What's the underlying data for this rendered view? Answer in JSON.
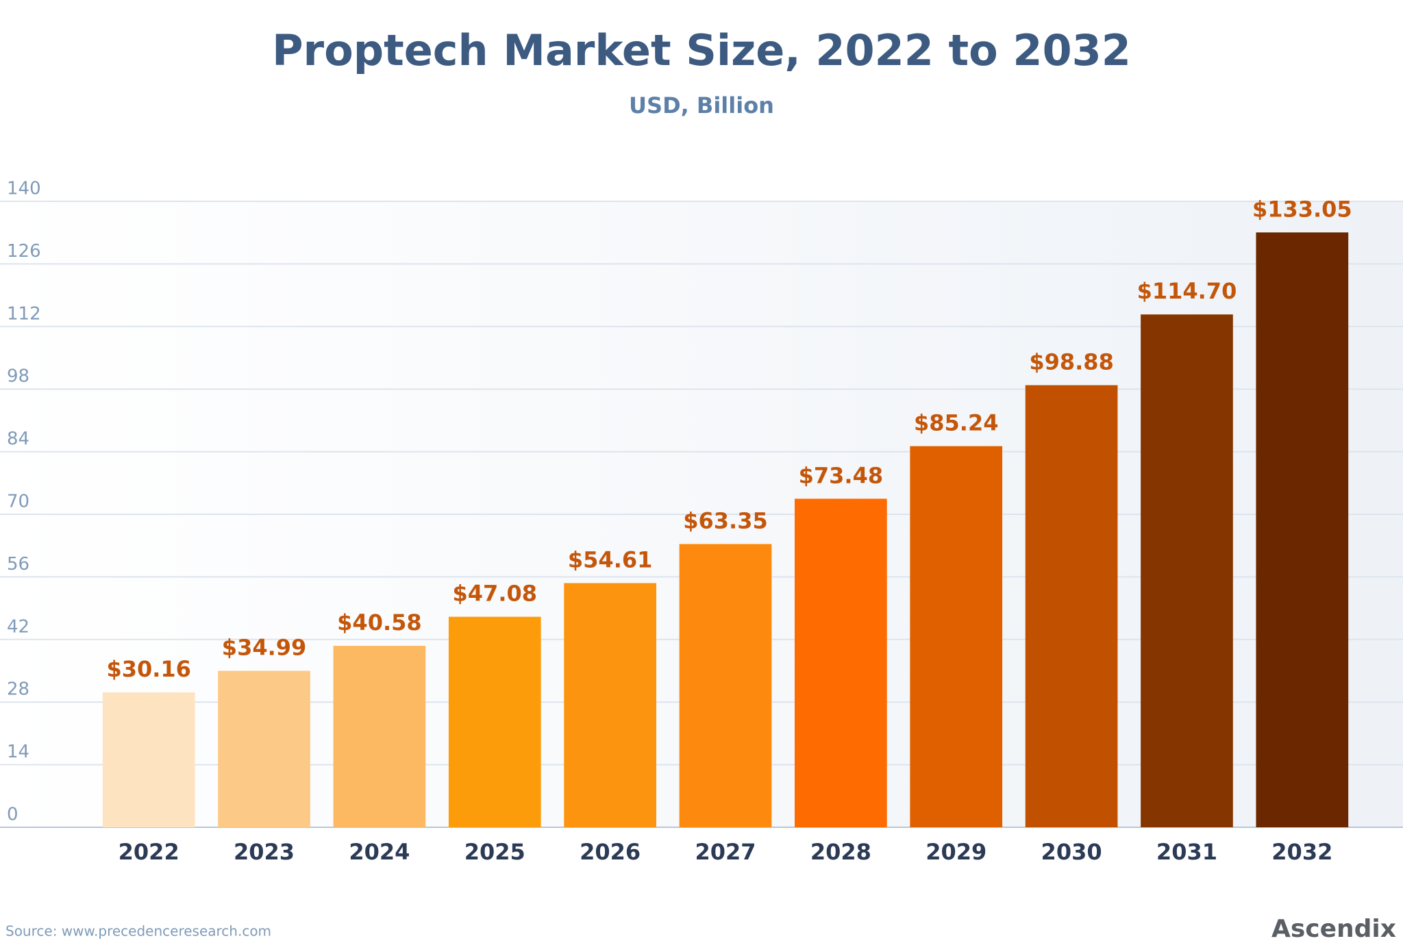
{
  "chart_data": {
    "type": "bar",
    "title": "Proptech Market Size, 2022 to 2032",
    "subtitle": "USD, Billion",
    "categories": [
      "2022",
      "2023",
      "2024",
      "2025",
      "2026",
      "2027",
      "2028",
      "2029",
      "2030",
      "2031",
      "2032"
    ],
    "values": [
      30.16,
      34.99,
      40.58,
      47.08,
      54.61,
      63.35,
      73.48,
      85.24,
      98.88,
      114.7,
      133.05
    ],
    "value_labels": [
      "$30.16",
      "$34.99",
      "$40.58",
      "$47.08",
      "$54.61",
      "$63.35",
      "$73.48",
      "$85.24",
      "$98.88",
      "$114.70",
      "$133.05"
    ],
    "colors": [
      "#fde3c0",
      "#fdc987",
      "#fdb962",
      "#fd9c0a",
      "#fc9410",
      "#fd8a0e",
      "#fe6b00",
      "#e06000",
      "#c15100",
      "#853600",
      "#6b2800"
    ],
    "ylim": [
      0,
      140
    ],
    "yticks": [
      0,
      14,
      28,
      42,
      56,
      70,
      84,
      98,
      112,
      126,
      140
    ],
    "grid": true,
    "source": "Source:  www.precedenceresearch.com",
    "logo": "Ascendix"
  }
}
